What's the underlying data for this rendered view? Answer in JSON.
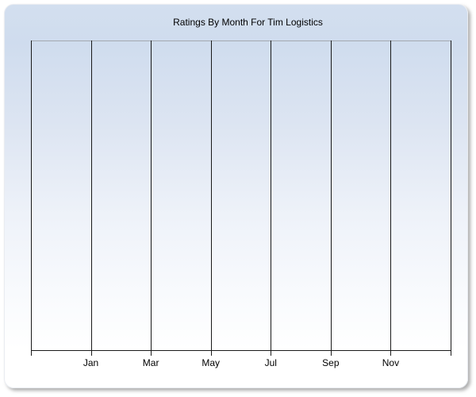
{
  "chart": {
    "title": "Ratings By Month For Tim Logistics",
    "x_axis": {
      "labels": [
        "Jan",
        "Mar",
        "May",
        "Jul",
        "Sep",
        "Nov"
      ]
    }
  },
  "chart_data": {
    "type": "line",
    "title": "Ratings By Month For Tim Logistics",
    "x_tick_labels": [
      "Jan",
      "Mar",
      "May",
      "Jul",
      "Sep",
      "Nov"
    ],
    "series": [],
    "layout": {
      "plot_empty": true,
      "vertical_gridline_count": 8,
      "labels_under_gridline_indexes": [
        1,
        2,
        3,
        4,
        5,
        6
      ],
      "y_axis_tick_labels": "none",
      "legend": "none",
      "grid": "vertical-only"
    }
  },
  "colors": {
    "card_gradient_top": "#cfdcee",
    "card_gradient_bottom": "#ffffff",
    "grid_line": "#1a1a1a",
    "plot_top_border": "#a3a8b0",
    "text": "#000000",
    "page_background": "#ffffff"
  }
}
